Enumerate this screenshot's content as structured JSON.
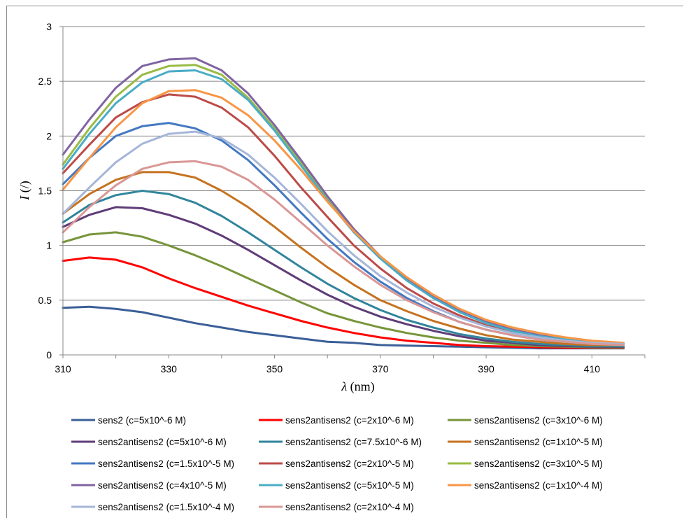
{
  "chart_data": {
    "type": "line",
    "title": "",
    "xlabel_symbol": "λ",
    "xlabel_unit": " (nm)",
    "ylabel_symbol": "I",
    "ylabel_unit": " (/)",
    "xlim": [
      310,
      420
    ],
    "ylim": [
      0,
      3
    ],
    "xticks": [
      310,
      330,
      350,
      370,
      390,
      410
    ],
    "yticks": [
      0,
      0.5,
      1,
      1.5,
      2,
      2.5,
      3
    ],
    "ytick_labels": [
      "0",
      "0.5",
      "1",
      "1.5",
      "2",
      "2.5",
      "3"
    ],
    "grid": "horizontal",
    "legend_position": "bottom",
    "series": [
      {
        "name": "sens2 (c=5x10^-6 M)",
        "color": "#3a5f98",
        "x": [
          310,
          315,
          320,
          325,
          330,
          335,
          340,
          345,
          350,
          355,
          360,
          365,
          370,
          375,
          380,
          385,
          390,
          395,
          400,
          405,
          410,
          416
        ],
        "y": [
          0.43,
          0.44,
          0.42,
          0.39,
          0.34,
          0.29,
          0.25,
          0.21,
          0.18,
          0.15,
          0.12,
          0.11,
          0.09,
          0.085,
          0.08,
          0.075,
          0.07,
          0.065,
          0.06,
          0.06,
          0.06,
          0.06
        ]
      },
      {
        "name": "sens2antisens2 (c=2x10^-6 M)",
        "color": "#ff0000",
        "x": [
          310,
          315,
          320,
          325,
          330,
          335,
          340,
          345,
          350,
          355,
          360,
          365,
          370,
          375,
          380,
          385,
          390,
          395,
          400,
          405,
          410,
          416
        ],
        "y": [
          0.86,
          0.89,
          0.87,
          0.8,
          0.7,
          0.61,
          0.53,
          0.45,
          0.38,
          0.31,
          0.25,
          0.2,
          0.16,
          0.13,
          0.11,
          0.09,
          0.08,
          0.075,
          0.07,
          0.065,
          0.065,
          0.065
        ]
      },
      {
        "name": "sens2antisens2 (c=3x10^-6 M)",
        "color": "#77953a",
        "x": [
          310,
          315,
          320,
          325,
          330,
          335,
          340,
          345,
          350,
          355,
          360,
          365,
          370,
          375,
          380,
          385,
          390,
          395,
          400,
          405,
          410,
          416
        ],
        "y": [
          1.03,
          1.1,
          1.12,
          1.08,
          1.0,
          0.91,
          0.81,
          0.7,
          0.59,
          0.48,
          0.38,
          0.31,
          0.25,
          0.2,
          0.16,
          0.13,
          0.11,
          0.09,
          0.08,
          0.075,
          0.07,
          0.07
        ]
      },
      {
        "name": "sens2antisens2 (c=5x10^-6 M)",
        "color": "#5f3c78",
        "x": [
          310,
          315,
          320,
          325,
          330,
          335,
          340,
          345,
          350,
          355,
          360,
          365,
          370,
          375,
          380,
          385,
          390,
          395,
          400,
          405,
          410,
          416
        ],
        "y": [
          1.17,
          1.28,
          1.35,
          1.34,
          1.28,
          1.2,
          1.09,
          0.96,
          0.82,
          0.68,
          0.55,
          0.44,
          0.35,
          0.28,
          0.22,
          0.17,
          0.13,
          0.11,
          0.09,
          0.08,
          0.075,
          0.075
        ]
      },
      {
        "name": "sens2antisens2 (c=7.5x10^-6 M)",
        "color": "#31859c",
        "x": [
          310,
          315,
          320,
          325,
          330,
          335,
          340,
          345,
          350,
          355,
          360,
          365,
          370,
          375,
          380,
          385,
          390,
          395,
          400,
          405,
          410,
          416
        ],
        "y": [
          1.21,
          1.37,
          1.46,
          1.5,
          1.47,
          1.39,
          1.27,
          1.12,
          0.96,
          0.8,
          0.65,
          0.52,
          0.41,
          0.32,
          0.25,
          0.19,
          0.15,
          0.12,
          0.1,
          0.09,
          0.08,
          0.08
        ]
      },
      {
        "name": "sens2antisens2 (c=1x10^-5 M)",
        "color": "#c5721f",
        "x": [
          310,
          315,
          320,
          325,
          330,
          335,
          340,
          345,
          350,
          355,
          360,
          365,
          370,
          375,
          380,
          385,
          390,
          395,
          400,
          405,
          410,
          416
        ],
        "y": [
          1.29,
          1.47,
          1.6,
          1.67,
          1.67,
          1.62,
          1.5,
          1.35,
          1.17,
          0.98,
          0.8,
          0.64,
          0.5,
          0.4,
          0.31,
          0.24,
          0.18,
          0.14,
          0.12,
          0.1,
          0.09,
          0.09
        ]
      },
      {
        "name": "sens2antisens2 (c=1.5x10^-5 M)",
        "color": "#4479c2",
        "x": [
          310,
          315,
          320,
          325,
          330,
          335,
          340,
          345,
          350,
          355,
          360,
          365,
          370,
          375,
          380,
          385,
          390,
          395,
          400,
          405,
          410,
          416
        ],
        "y": [
          1.56,
          1.8,
          2.0,
          2.09,
          2.12,
          2.07,
          1.96,
          1.78,
          1.55,
          1.3,
          1.06,
          0.85,
          0.67,
          0.52,
          0.4,
          0.3,
          0.23,
          0.18,
          0.14,
          0.12,
          0.1,
          0.1
        ]
      },
      {
        "name": "sens2antisens2 (c=2x10^-5 M)",
        "color": "#bd4b48",
        "x": [
          310,
          315,
          320,
          325,
          330,
          335,
          340,
          345,
          350,
          355,
          360,
          365,
          370,
          375,
          380,
          385,
          390,
          395,
          400,
          405,
          410,
          416
        ],
        "y": [
          1.66,
          1.92,
          2.17,
          2.31,
          2.38,
          2.36,
          2.26,
          2.08,
          1.82,
          1.53,
          1.26,
          1.0,
          0.79,
          0.61,
          0.47,
          0.36,
          0.27,
          0.21,
          0.16,
          0.13,
          0.11,
          0.1
        ]
      },
      {
        "name": "sens2antisens2 (c=3x10^-5 M)",
        "color": "#99bb44",
        "x": [
          310,
          315,
          320,
          325,
          330,
          335,
          340,
          345,
          350,
          355,
          360,
          365,
          370,
          375,
          380,
          385,
          390,
          395,
          400,
          405,
          410,
          416
        ],
        "y": [
          1.74,
          2.07,
          2.36,
          2.56,
          2.64,
          2.65,
          2.56,
          2.35,
          2.07,
          1.75,
          1.43,
          1.14,
          0.9,
          0.7,
          0.53,
          0.4,
          0.3,
          0.23,
          0.18,
          0.14,
          0.11,
          0.1
        ]
      },
      {
        "name": "sens2antisens2 (c=4x10^-5 M)",
        "color": "#8064a2",
        "x": [
          310,
          315,
          320,
          325,
          330,
          335,
          340,
          345,
          350,
          355,
          360,
          365,
          370,
          375,
          380,
          385,
          390,
          395,
          400,
          405,
          410,
          416
        ],
        "y": [
          1.83,
          2.15,
          2.44,
          2.64,
          2.7,
          2.71,
          2.6,
          2.39,
          2.1,
          1.78,
          1.45,
          1.15,
          0.9,
          0.69,
          0.53,
          0.4,
          0.3,
          0.23,
          0.18,
          0.14,
          0.11,
          0.1
        ]
      },
      {
        "name": "sens2antisens2 (c=5x10^-5 M)",
        "color": "#4bacc6",
        "x": [
          310,
          315,
          320,
          325,
          330,
          335,
          340,
          345,
          350,
          355,
          360,
          365,
          370,
          375,
          380,
          385,
          390,
          395,
          400,
          405,
          410,
          416
        ],
        "y": [
          1.7,
          2.02,
          2.3,
          2.49,
          2.59,
          2.6,
          2.52,
          2.33,
          2.05,
          1.73,
          1.41,
          1.12,
          0.88,
          0.68,
          0.52,
          0.39,
          0.29,
          0.22,
          0.17,
          0.14,
          0.11,
          0.1
        ]
      },
      {
        "name": "sens2antisens2 (c=1x10^-4 M)",
        "color": "#f79646",
        "x": [
          310,
          315,
          320,
          325,
          330,
          335,
          340,
          345,
          350,
          355,
          360,
          365,
          370,
          375,
          380,
          385,
          390,
          395,
          400,
          405,
          410,
          416
        ],
        "y": [
          1.51,
          1.8,
          2.08,
          2.3,
          2.41,
          2.42,
          2.35,
          2.19,
          1.96,
          1.69,
          1.4,
          1.13,
          0.9,
          0.71,
          0.55,
          0.42,
          0.32,
          0.25,
          0.2,
          0.16,
          0.13,
          0.11
        ]
      },
      {
        "name": "sens2antisens2 (c=1.5x10^-4 M)",
        "color": "#a5b6d8",
        "x": [
          310,
          315,
          320,
          325,
          330,
          335,
          340,
          345,
          350,
          355,
          360,
          365,
          370,
          375,
          380,
          385,
          390,
          395,
          400,
          405,
          410,
          416
        ],
        "y": [
          1.29,
          1.53,
          1.76,
          1.93,
          2.02,
          2.04,
          1.98,
          1.83,
          1.62,
          1.38,
          1.13,
          0.91,
          0.72,
          0.57,
          0.44,
          0.34,
          0.26,
          0.2,
          0.16,
          0.13,
          0.11,
          0.1
        ]
      },
      {
        "name": "sens2antisens2 (c=2x10^-4 M)",
        "color": "#d99795",
        "x": [
          310,
          315,
          320,
          325,
          330,
          335,
          340,
          345,
          350,
          355,
          360,
          365,
          370,
          375,
          380,
          385,
          390,
          395,
          400,
          405,
          410,
          416
        ],
        "y": [
          1.12,
          1.35,
          1.55,
          1.7,
          1.76,
          1.77,
          1.72,
          1.6,
          1.42,
          1.21,
          1.0,
          0.81,
          0.64,
          0.5,
          0.39,
          0.3,
          0.23,
          0.18,
          0.14,
          0.12,
          0.1,
          0.09
        ]
      }
    ]
  }
}
